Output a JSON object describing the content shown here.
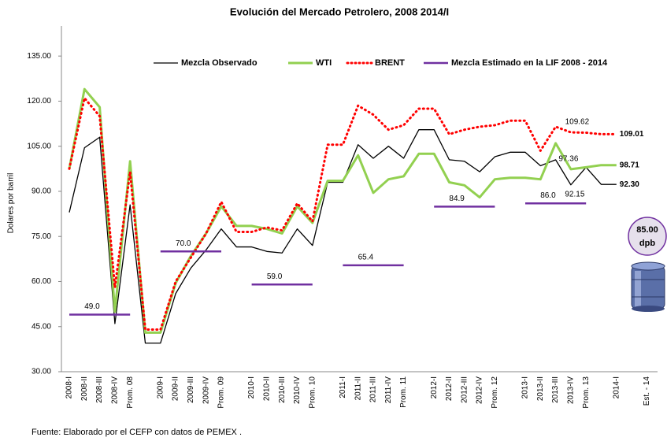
{
  "chart_data": {
    "type": "line",
    "title": "Evolución del Mercado Petrolero, 2008 2014/I",
    "y_label": "Dolares por barril",
    "source": "Fuente: Elaborado por el CEFP con datos de PEMEX .",
    "categories": [
      "2008-I",
      "2008-II",
      "2008-III",
      "2008-IV",
      "Prom. 08",
      null,
      "2009-I",
      "2009-II",
      "2009-III",
      "2009-IV",
      "Prom. 09",
      null,
      "2010-I",
      "2010-II",
      "2010-III",
      "2010-IV",
      "Prom. 10",
      null,
      "2011-I",
      "2011-II",
      "2011-III",
      "2011-IV",
      "Prom. 11",
      null,
      "2012-I",
      "2012-II",
      "2012-III",
      "2012-IV",
      "Prom. 12",
      null,
      "2013-I",
      "2013-II",
      "2013-III",
      "2013-IV",
      "Prom. 13",
      null,
      "2014-I",
      null,
      "Est. - 14"
    ],
    "ylim": [
      30,
      145
    ],
    "yticks": [
      {
        "value": 30,
        "label": "30.00"
      },
      {
        "value": 45,
        "label": "45.00"
      },
      {
        "value": 60,
        "label": "60.00"
      },
      {
        "value": 75,
        "label": "75.00"
      },
      {
        "value": 90,
        "label": "90.00"
      },
      {
        "value": 105,
        "label": "105.00"
      },
      {
        "value": 120,
        "label": "120.00"
      },
      {
        "value": 135,
        "label": "135.00"
      }
    ],
    "series": [
      {
        "name": "Mezcla Observado",
        "color": "#000000",
        "style": "solid",
        "width": 1.3,
        "values": [
          83,
          104.5,
          108,
          46,
          85.5,
          39.5,
          39.5,
          56,
          64.5,
          70.5,
          77.5,
          71.5,
          71.5,
          70,
          69.5,
          77.5,
          72,
          93,
          93,
          105.5,
          101,
          105,
          101,
          110.5,
          110.5,
          100.5,
          100,
          96.5,
          101.5,
          103,
          103,
          98.5,
          100.5,
          92.15,
          98,
          92.3,
          92.3,
          null,
          null
        ],
        "value_labels": [
          null,
          null,
          null,
          null,
          null,
          null,
          null,
          null,
          null,
          null,
          null,
          null,
          null,
          null,
          null,
          null,
          null,
          null,
          null,
          null,
          null,
          null,
          null,
          null,
          null,
          null,
          null,
          null,
          null,
          null,
          null,
          null,
          null,
          "92.15",
          null,
          null,
          "92.30",
          null,
          null
        ]
      },
      {
        "name": "WTI",
        "color": "#92d050",
        "style": "solid",
        "width": 3,
        "values": [
          97.5,
          124,
          118,
          50,
          100,
          43,
          43,
          59.5,
          68.5,
          76,
          85,
          78.5,
          78.5,
          77.5,
          76,
          85,
          79.5,
          93.5,
          93.5,
          102,
          89.5,
          94,
          95,
          102.5,
          102.5,
          93,
          92,
          88,
          94,
          94.5,
          94.5,
          94,
          106,
          97.36,
          98,
          98.71,
          98.71,
          null,
          null
        ],
        "value_labels": [
          null,
          null,
          null,
          null,
          null,
          null,
          null,
          null,
          null,
          null,
          null,
          null,
          null,
          null,
          null,
          null,
          null,
          null,
          null,
          null,
          null,
          null,
          null,
          null,
          null,
          null,
          null,
          null,
          null,
          null,
          null,
          null,
          null,
          "97.36",
          null,
          null,
          "98.71",
          null,
          null
        ]
      },
      {
        "name": "BRENT",
        "color": "#ff0000",
        "style": "dotted",
        "width": 3,
        "values": [
          97.5,
          121,
          115,
          58,
          96.5,
          44,
          44,
          60,
          68,
          76,
          86.5,
          76.5,
          76.5,
          78,
          77,
          86,
          80,
          105.5,
          105.5,
          118.5,
          115.5,
          110.5,
          112,
          117.5,
          117.5,
          109,
          110.5,
          111.5,
          112,
          113.5,
          113.5,
          103.5,
          111.5,
          109.62,
          109.5,
          109.01,
          109.01,
          null,
          null
        ],
        "value_labels": [
          null,
          null,
          null,
          null,
          null,
          null,
          null,
          null,
          null,
          null,
          null,
          null,
          null,
          null,
          null,
          null,
          null,
          null,
          null,
          null,
          null,
          null,
          null,
          null,
          null,
          null,
          null,
          null,
          null,
          null,
          null,
          null,
          null,
          "109.62",
          null,
          null,
          "109.01",
          null,
          null
        ]
      },
      {
        "name": "Mezcla Estimado en la LIF 2008 - 2014",
        "color": "#7030a0",
        "style": "solid",
        "width": 2.5,
        "values": [
          49,
          49,
          49,
          49,
          49,
          null,
          70,
          70,
          70,
          70,
          70,
          null,
          59,
          59,
          59,
          59,
          59,
          null,
          65.4,
          65.4,
          65.4,
          65.4,
          65.4,
          null,
          84.9,
          84.9,
          84.9,
          84.9,
          84.9,
          null,
          86,
          86,
          86,
          86,
          86,
          null,
          null,
          null,
          null
        ],
        "value_labels": [
          null,
          null,
          "49.0",
          null,
          null,
          null,
          null,
          null,
          "70.0",
          null,
          null,
          null,
          null,
          null,
          "59.0",
          null,
          null,
          null,
          null,
          null,
          "65.4",
          null,
          null,
          null,
          null,
          null,
          "84.9",
          null,
          null,
          null,
          null,
          null,
          "86.0",
          null,
          null,
          null,
          null,
          null,
          null
        ]
      }
    ],
    "estimate": {
      "value": 85,
      "label": "85.00",
      "unit": "dpb"
    }
  }
}
